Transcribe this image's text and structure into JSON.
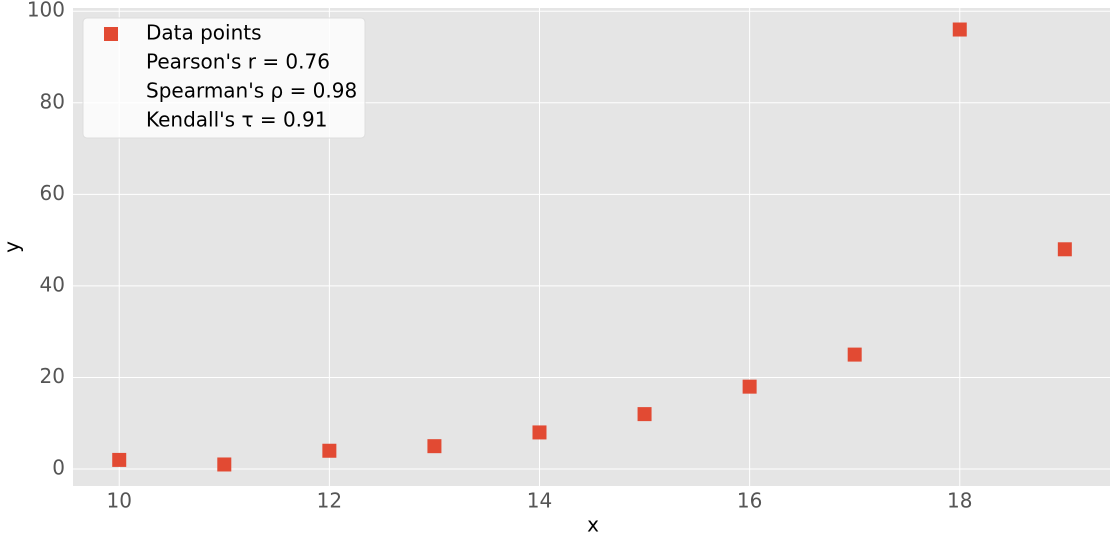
{
  "chart_data": {
    "type": "scatter",
    "x_label": "x",
    "y_label": "y",
    "x": [
      10,
      11,
      12,
      13,
      14,
      15,
      16,
      17,
      18,
      19
    ],
    "series": [
      {
        "name": "Data points",
        "color": "#E24A33",
        "values": [
          2,
          1,
          4,
          5,
          8,
          12,
          18,
          25,
          96,
          48
        ]
      }
    ],
    "annotations": [
      "Pearson's r = 0.76",
      "Spearman's ρ = 0.98",
      "Kendall's τ = 0.91"
    ],
    "xlim": [
      9.56,
      19.43
    ],
    "ylim": [
      -3.7,
      100.7
    ],
    "xticks": [
      10,
      12,
      14,
      16,
      18
    ],
    "yticks": [
      0,
      20,
      40,
      60,
      80,
      100
    ],
    "grid": true,
    "legend_position": "upper left",
    "background": "#E5E5E5"
  }
}
